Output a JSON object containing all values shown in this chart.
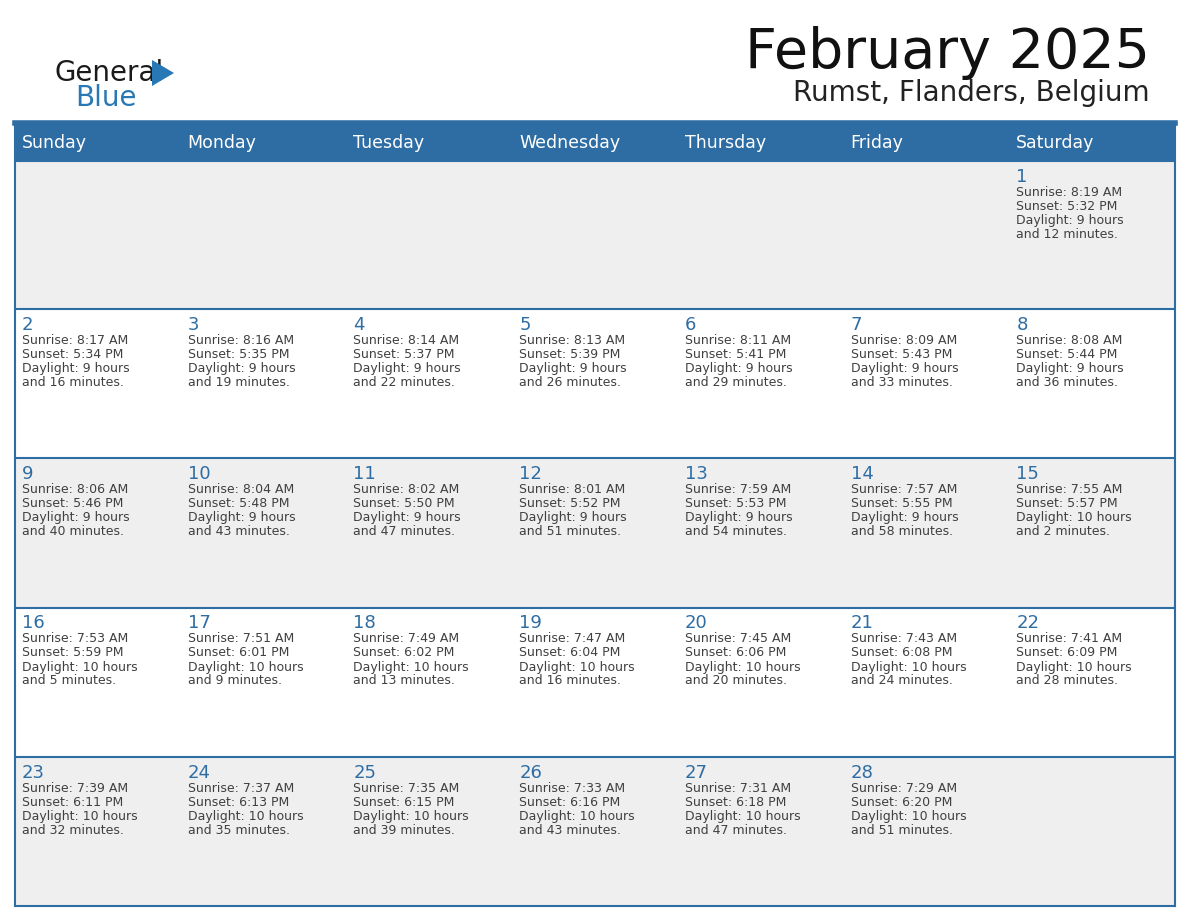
{
  "title": "February 2025",
  "subtitle": "Rumst, Flanders, Belgium",
  "days_of_week": [
    "Sunday",
    "Monday",
    "Tuesday",
    "Wednesday",
    "Thursday",
    "Friday",
    "Saturday"
  ],
  "header_bg": "#2E6DA4",
  "header_text": "#FFFFFF",
  "row_bg_odd": "#EFEFEF",
  "row_bg_even": "#FFFFFF",
  "cell_border": "#2E6DA4",
  "day_num_color": "#2E6DA4",
  "text_color": "#404040",
  "logo_general_color": "#1a1a1a",
  "logo_blue_color": "#2878b5",
  "calendar_data": [
    [
      null,
      null,
      null,
      null,
      null,
      null,
      {
        "day": "1",
        "sunrise": "8:19 AM",
        "sunset": "5:32 PM",
        "daylight_line1": "Daylight: 9 hours",
        "daylight_line2": "and 12 minutes."
      }
    ],
    [
      {
        "day": "2",
        "sunrise": "8:17 AM",
        "sunset": "5:34 PM",
        "daylight_line1": "Daylight: 9 hours",
        "daylight_line2": "and 16 minutes."
      },
      {
        "day": "3",
        "sunrise": "8:16 AM",
        "sunset": "5:35 PM",
        "daylight_line1": "Daylight: 9 hours",
        "daylight_line2": "and 19 minutes."
      },
      {
        "day": "4",
        "sunrise": "8:14 AM",
        "sunset": "5:37 PM",
        "daylight_line1": "Daylight: 9 hours",
        "daylight_line2": "and 22 minutes."
      },
      {
        "day": "5",
        "sunrise": "8:13 AM",
        "sunset": "5:39 PM",
        "daylight_line1": "Daylight: 9 hours",
        "daylight_line2": "and 26 minutes."
      },
      {
        "day": "6",
        "sunrise": "8:11 AM",
        "sunset": "5:41 PM",
        "daylight_line1": "Daylight: 9 hours",
        "daylight_line2": "and 29 minutes."
      },
      {
        "day": "7",
        "sunrise": "8:09 AM",
        "sunset": "5:43 PM",
        "daylight_line1": "Daylight: 9 hours",
        "daylight_line2": "and 33 minutes."
      },
      {
        "day": "8",
        "sunrise": "8:08 AM",
        "sunset": "5:44 PM",
        "daylight_line1": "Daylight: 9 hours",
        "daylight_line2": "and 36 minutes."
      }
    ],
    [
      {
        "day": "9",
        "sunrise": "8:06 AM",
        "sunset": "5:46 PM",
        "daylight_line1": "Daylight: 9 hours",
        "daylight_line2": "and 40 minutes."
      },
      {
        "day": "10",
        "sunrise": "8:04 AM",
        "sunset": "5:48 PM",
        "daylight_line1": "Daylight: 9 hours",
        "daylight_line2": "and 43 minutes."
      },
      {
        "day": "11",
        "sunrise": "8:02 AM",
        "sunset": "5:50 PM",
        "daylight_line1": "Daylight: 9 hours",
        "daylight_line2": "and 47 minutes."
      },
      {
        "day": "12",
        "sunrise": "8:01 AM",
        "sunset": "5:52 PM",
        "daylight_line1": "Daylight: 9 hours",
        "daylight_line2": "and 51 minutes."
      },
      {
        "day": "13",
        "sunrise": "7:59 AM",
        "sunset": "5:53 PM",
        "daylight_line1": "Daylight: 9 hours",
        "daylight_line2": "and 54 minutes."
      },
      {
        "day": "14",
        "sunrise": "7:57 AM",
        "sunset": "5:55 PM",
        "daylight_line1": "Daylight: 9 hours",
        "daylight_line2": "and 58 minutes."
      },
      {
        "day": "15",
        "sunrise": "7:55 AM",
        "sunset": "5:57 PM",
        "daylight_line1": "Daylight: 10 hours",
        "daylight_line2": "and 2 minutes."
      }
    ],
    [
      {
        "day": "16",
        "sunrise": "7:53 AM",
        "sunset": "5:59 PM",
        "daylight_line1": "Daylight: 10 hours",
        "daylight_line2": "and 5 minutes."
      },
      {
        "day": "17",
        "sunrise": "7:51 AM",
        "sunset": "6:01 PM",
        "daylight_line1": "Daylight: 10 hours",
        "daylight_line2": "and 9 minutes."
      },
      {
        "day": "18",
        "sunrise": "7:49 AM",
        "sunset": "6:02 PM",
        "daylight_line1": "Daylight: 10 hours",
        "daylight_line2": "and 13 minutes."
      },
      {
        "day": "19",
        "sunrise": "7:47 AM",
        "sunset": "6:04 PM",
        "daylight_line1": "Daylight: 10 hours",
        "daylight_line2": "and 16 minutes."
      },
      {
        "day": "20",
        "sunrise": "7:45 AM",
        "sunset": "6:06 PM",
        "daylight_line1": "Daylight: 10 hours",
        "daylight_line2": "and 20 minutes."
      },
      {
        "day": "21",
        "sunrise": "7:43 AM",
        "sunset": "6:08 PM",
        "daylight_line1": "Daylight: 10 hours",
        "daylight_line2": "and 24 minutes."
      },
      {
        "day": "22",
        "sunrise": "7:41 AM",
        "sunset": "6:09 PM",
        "daylight_line1": "Daylight: 10 hours",
        "daylight_line2": "and 28 minutes."
      }
    ],
    [
      {
        "day": "23",
        "sunrise": "7:39 AM",
        "sunset": "6:11 PM",
        "daylight_line1": "Daylight: 10 hours",
        "daylight_line2": "and 32 minutes."
      },
      {
        "day": "24",
        "sunrise": "7:37 AM",
        "sunset": "6:13 PM",
        "daylight_line1": "Daylight: 10 hours",
        "daylight_line2": "and 35 minutes."
      },
      {
        "day": "25",
        "sunrise": "7:35 AM",
        "sunset": "6:15 PM",
        "daylight_line1": "Daylight: 10 hours",
        "daylight_line2": "and 39 minutes."
      },
      {
        "day": "26",
        "sunrise": "7:33 AM",
        "sunset": "6:16 PM",
        "daylight_line1": "Daylight: 10 hours",
        "daylight_line2": "and 43 minutes."
      },
      {
        "day": "27",
        "sunrise": "7:31 AM",
        "sunset": "6:18 PM",
        "daylight_line1": "Daylight: 10 hours",
        "daylight_line2": "and 47 minutes."
      },
      {
        "day": "28",
        "sunrise": "7:29 AM",
        "sunset": "6:20 PM",
        "daylight_line1": "Daylight: 10 hours",
        "daylight_line2": "and 51 minutes."
      },
      null
    ]
  ]
}
